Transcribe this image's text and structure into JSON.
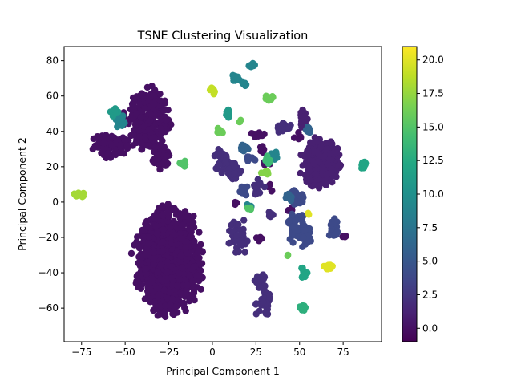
{
  "chart_data": {
    "type": "scatter",
    "title": "TSNE Clustering Visualization",
    "xlabel": "Principal Component 1",
    "ylabel": "Principal Component 2",
    "xlim": [
      -85,
      97
    ],
    "ylim": [
      -79,
      88
    ],
    "xticks": [
      -75,
      -50,
      -25,
      0,
      25,
      50,
      75
    ],
    "yticks": [
      -60,
      -40,
      -20,
      0,
      20,
      40,
      60,
      80
    ],
    "grid": false,
    "legend": "none",
    "colormap": "viridis",
    "colorbar": {
      "range": [
        -1,
        21
      ],
      "ticks": [
        0.0,
        2.5,
        5.0,
        7.5,
        10.0,
        12.5,
        15.0,
        17.5,
        20.0
      ],
      "tick_labels": [
        "0.0",
        "2.5",
        "5.0",
        "7.5",
        "10.0",
        "12.5",
        "15.0",
        "17.5",
        "20.0"
      ]
    },
    "clusters": [
      {
        "label": 0,
        "cx": -25,
        "cy": -33,
        "rx": 22,
        "ry": 34,
        "n": 1100
      },
      {
        "label": 0,
        "cx": -37,
        "cy": 47,
        "rx": 15,
        "ry": 20,
        "n": 260
      },
      {
        "label": 0,
        "cx": -58,
        "cy": 32,
        "rx": 14,
        "ry": 8,
        "n": 90
      },
      {
        "label": 0,
        "cx": -30,
        "cy": 25,
        "rx": 7,
        "ry": 8,
        "n": 40
      },
      {
        "label": 0,
        "cx": 26,
        "cy": 38,
        "rx": 5,
        "ry": 3,
        "n": 10
      },
      {
        "label": 0,
        "cx": 30,
        "cy": 30,
        "rx": 3,
        "ry": 3,
        "n": 5
      },
      {
        "label": 0,
        "cx": 27,
        "cy": -20,
        "rx": 3,
        "ry": 3,
        "n": 5
      },
      {
        "label": 0,
        "cx": 33,
        "cy": 8,
        "rx": 3,
        "ry": 3,
        "n": 5
      },
      {
        "label": 0,
        "cx": 45,
        "cy": -5,
        "rx": 3,
        "ry": 3,
        "n": 5
      },
      {
        "label": 0,
        "cx": 49,
        "cy": 37,
        "rx": 3,
        "ry": 3,
        "n": 6
      },
      {
        "label": 0,
        "cx": 13,
        "cy": -1,
        "rx": 2,
        "ry": 2,
        "n": 3
      },
      {
        "label": 0,
        "cx": 32,
        "cy": 22,
        "rx": 3,
        "ry": 3,
        "n": 4
      },
      {
        "label": 0,
        "cx": 76,
        "cy": -19,
        "rx": 2,
        "ry": 2,
        "n": 3
      },
      {
        "label": 1,
        "cx": 62,
        "cy": 22,
        "rx": 13,
        "ry": 17,
        "n": 240
      },
      {
        "label": 1,
        "cx": 52,
        "cy": 47,
        "rx": 3,
        "ry": 7,
        "n": 25
      },
      {
        "label": 2,
        "cx": 40,
        "cy": 42,
        "rx": 6,
        "ry": 3,
        "n": 20
      },
      {
        "label": 2,
        "cx": 5,
        "cy": 22,
        "rx": 5,
        "ry": 10,
        "n": 40
      },
      {
        "label": 2,
        "cx": 13,
        "cy": 18,
        "rx": 5,
        "ry": 8,
        "n": 30
      },
      {
        "label": 2,
        "cx": 15,
        "cy": -20,
        "rx": 6,
        "ry": 12,
        "n": 40
      },
      {
        "label": 2,
        "cx": 27,
        "cy": 8,
        "rx": 4,
        "ry": 5,
        "n": 15
      },
      {
        "label": 2,
        "cx": 27,
        "cy": -45,
        "rx": 4,
        "ry": 6,
        "n": 20
      },
      {
        "label": 2,
        "cx": 29,
        "cy": -58,
        "rx": 6,
        "ry": 9,
        "n": 30
      },
      {
        "label": 2,
        "cx": 33,
        "cy": -8,
        "rx": 3,
        "ry": 3,
        "n": 8
      },
      {
        "label": 4,
        "cx": 48,
        "cy": -14,
        "rx": 8,
        "ry": 10,
        "n": 60
      },
      {
        "label": 4,
        "cx": 54,
        "cy": -20,
        "rx": 4,
        "ry": 7,
        "n": 25
      },
      {
        "label": 4,
        "cx": 70,
        "cy": -15,
        "rx": 4,
        "ry": 7,
        "n": 25
      },
      {
        "label": 4,
        "cx": 47,
        "cy": 2,
        "rx": 7,
        "ry": 5,
        "n": 25
      },
      {
        "label": 4,
        "cx": 18,
        "cy": 7,
        "rx": 3,
        "ry": 4,
        "n": 10
      },
      {
        "label": 4,
        "cx": 22,
        "cy": 24,
        "rx": 3,
        "ry": 3,
        "n": 8
      },
      {
        "label": 6,
        "cx": 44,
        "cy": 3,
        "rx": 3,
        "ry": 3,
        "n": 10
      },
      {
        "label": 6,
        "cx": 18,
        "cy": 31,
        "rx": 4,
        "ry": 3,
        "n": 10
      },
      {
        "label": 6,
        "cx": 55,
        "cy": 40,
        "rx": 2,
        "ry": 4,
        "n": 8
      },
      {
        "label": 9,
        "cx": 23,
        "cy": 77,
        "rx": 3,
        "ry": 2,
        "n": 12
      },
      {
        "label": 9,
        "cx": 13,
        "cy": 70,
        "rx": 3,
        "ry": 3,
        "n": 12
      },
      {
        "label": 9,
        "cx": 18,
        "cy": 67,
        "rx": 2,
        "ry": 2,
        "n": 6
      },
      {
        "label": 9,
        "cx": 36,
        "cy": 26,
        "rx": 3,
        "ry": 3,
        "n": 10
      },
      {
        "label": 9,
        "cx": -53,
        "cy": 46,
        "rx": 3,
        "ry": 5,
        "n": 15
      },
      {
        "label": 9,
        "cx": 21,
        "cy": -3,
        "rx": 2,
        "ry": 2,
        "n": 4
      },
      {
        "label": 11,
        "cx": -56,
        "cy": 51,
        "rx": 3,
        "ry": 3,
        "n": 12
      },
      {
        "label": 11,
        "cx": 9,
        "cy": 50,
        "rx": 2,
        "ry": 3,
        "n": 8
      },
      {
        "label": 12,
        "cx": 87,
        "cy": 21,
        "rx": 2,
        "ry": 4,
        "n": 15
      },
      {
        "label": 12,
        "cx": 53,
        "cy": -40,
        "rx": 3,
        "ry": 4,
        "n": 15
      },
      {
        "label": 13,
        "cx": 52,
        "cy": -60,
        "rx": 4,
        "ry": 2,
        "n": 12
      },
      {
        "label": 14,
        "cx": 32,
        "cy": 24,
        "rx": 2,
        "ry": 3,
        "n": 8
      },
      {
        "label": 15,
        "cx": -17,
        "cy": 22,
        "rx": 3,
        "ry": 2,
        "n": 8
      },
      {
        "label": 15,
        "cx": 21,
        "cy": -3,
        "rx": 2,
        "ry": 2,
        "n": 5
      },
      {
        "label": 16,
        "cx": 4,
        "cy": 39,
        "rx": 3,
        "ry": 3,
        "n": 10
      },
      {
        "label": 16,
        "cx": 33,
        "cy": 59,
        "rx": 3,
        "ry": 3,
        "n": 10
      },
      {
        "label": 16,
        "cx": 16,
        "cy": 46,
        "rx": 1,
        "ry": 1,
        "n": 2
      },
      {
        "label": 16,
        "cx": 43,
        "cy": -30,
        "rx": 1,
        "ry": 1,
        "n": 2
      },
      {
        "label": 17,
        "cx": 30,
        "cy": 16,
        "rx": 3,
        "ry": 2,
        "n": 8
      },
      {
        "label": 18,
        "cx": -76,
        "cy": 4,
        "rx": 4,
        "ry": 2,
        "n": 10
      },
      {
        "label": 19,
        "cx": 0,
        "cy": 63,
        "rx": 2,
        "ry": 3,
        "n": 8
      },
      {
        "label": 20,
        "cx": 66,
        "cy": -37,
        "rx": 5,
        "ry": 2,
        "n": 12
      },
      {
        "label": 20,
        "cx": 55,
        "cy": -7,
        "rx": 1,
        "ry": 1,
        "n": 2
      }
    ]
  }
}
